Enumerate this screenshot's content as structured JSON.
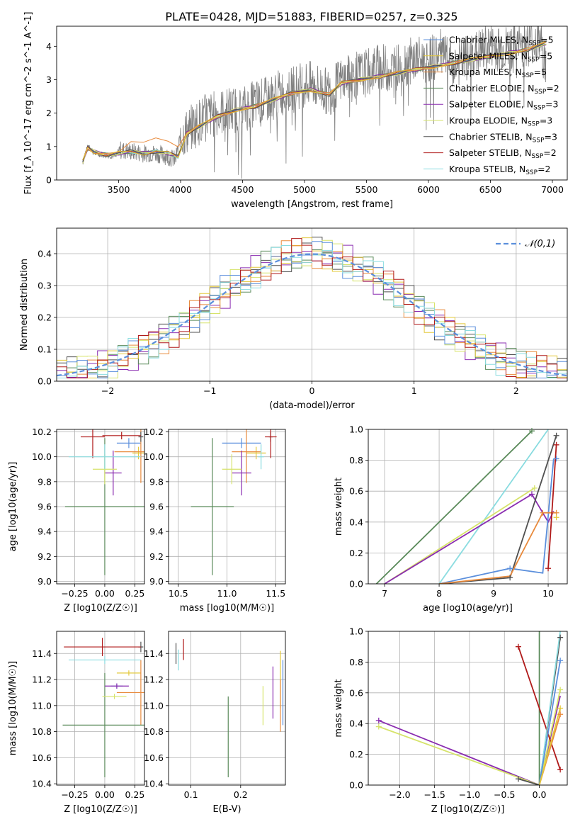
{
  "title": "PLATE=0428, MJD=51883, FIBERID=0257, z=0.325",
  "series": [
    {
      "name": "Chabrier MILES, N_SSP=5",
      "color": "#5b8fdc"
    },
    {
      "name": "Salpeter MILES, N_SSP=5",
      "color": "#e3c83a"
    },
    {
      "name": "Kroupa MILES, N_SSP=5",
      "color": "#e88a3c"
    },
    {
      "name": "Chabrier ELODIE, N_SSP=2",
      "color": "#5a8a5a"
    },
    {
      "name": "Salpeter ELODIE, N_SSP=3",
      "color": "#8a2cb0"
    },
    {
      "name": "Kroupa ELODIE, N_SSP=3",
      "color": "#d6e36a"
    },
    {
      "name": "Chabrier STELIB, N_SSP=3",
      "color": "#505050"
    },
    {
      "name": "Salpeter STELIB, N_SSP=2",
      "color": "#b01a1a"
    },
    {
      "name": "Kroupa STELIB, N_SSP=2",
      "color": "#8adce0"
    }
  ],
  "chart_data": [
    {
      "id": "spectrum",
      "type": "line",
      "xlabel": "wavelength [Angstrom, rest frame]",
      "ylabel": "Flux [f_λ 10^-17 erg cm^-2 s^-1 A^-1]",
      "xlim": [
        3000,
        7120
      ],
      "ylim": [
        0,
        4.6
      ],
      "xticks": [
        3500,
        4000,
        4500,
        5000,
        5500,
        6000,
        6500,
        7000
      ],
      "yticks": [
        0,
        1,
        2,
        3,
        4
      ],
      "legend": "upper right",
      "data_x": [
        3210,
        3230,
        3260,
        3300,
        3400,
        3480,
        3500,
        3600,
        3700,
        3800,
        3900,
        3960,
        4000,
        4100,
        4200,
        4300,
        4400,
        4500,
        4600,
        4700,
        4800,
        4900,
        5000,
        5100,
        5200,
        5300,
        5400,
        5500,
        5600,
        5700,
        5800,
        5900,
        6000,
        6100,
        6200,
        6300,
        6400,
        6500,
        6600,
        6700,
        6800,
        6900,
        6950
      ],
      "data_y": [
        0.5,
        0.8,
        1.05,
        0.8,
        0.75,
        0.7,
        0.9,
        0.85,
        0.8,
        0.8,
        0.7,
        0.6,
        1.3,
        1.6,
        1.9,
        2.0,
        2.1,
        2.1,
        2.3,
        2.4,
        2.6,
        2.7,
        2.9,
        2.8,
        2.6,
        3.0,
        3.1,
        3.2,
        3.4,
        3.3,
        3.5,
        3.6,
        3.6,
        3.8,
        3.4,
        3.6,
        3.8,
        4.0,
        3.9,
        4.0,
        4.1,
        4.2,
        3.3
      ],
      "model_x": [
        3210,
        3250,
        3300,
        3400,
        3500,
        3600,
        3700,
        3800,
        3900,
        3980,
        4050,
        4150,
        4300,
        4450,
        4600,
        4750,
        4900,
        5050,
        5200,
        5300,
        5450,
        5600,
        5750,
        5900,
        6050,
        6200,
        6350,
        6500,
        6650,
        6800,
        6950
      ],
      "model_y": [
        0.55,
        0.95,
        0.85,
        0.75,
        0.8,
        0.85,
        0.8,
        0.85,
        0.8,
        0.7,
        1.4,
        1.6,
        1.9,
        2.1,
        2.2,
        2.4,
        2.6,
        2.7,
        2.55,
        2.9,
        3.0,
        3.1,
        3.2,
        3.3,
        3.4,
        3.5,
        3.6,
        3.7,
        3.8,
        3.9,
        4.1
      ]
    },
    {
      "id": "residuals",
      "type": "step-histogram",
      "xlabel": "(data-model)/error",
      "ylabel": "Normed distribution",
      "xlim": [
        -2.5,
        2.5
      ],
      "ylim": [
        0,
        0.48
      ],
      "xticks": [
        -2,
        -1,
        0,
        1,
        2
      ],
      "yticks": [
        0.0,
        0.1,
        0.2,
        0.3,
        0.4
      ],
      "legend_label": "𝒩(0,1)",
      "legend": "upper right",
      "bin_width": 0.1,
      "hist_start": -2.5,
      "base_curve": "normal(0,1)"
    },
    {
      "id": "age_vs_Z",
      "type": "errorbar",
      "xlabel": "Z [log10(Z/Z☉)]",
      "ylabel": "age [log10(age/yr)]",
      "xlim": [
        -0.4,
        0.33
      ],
      "ylim": [
        8.98,
        10.22
      ],
      "xticks": [
        -0.25,
        0.0,
        0.25
      ],
      "yticks": [
        9.0,
        9.2,
        9.4,
        9.6,
        9.8,
        10.0,
        10.2
      ],
      "points": [
        {
          "s": 0,
          "x": 0.2,
          "y": 10.11,
          "xerr": 0.1,
          "yerr": 0.04
        },
        {
          "s": 1,
          "x": 0.28,
          "y": 10.03,
          "xerr": 0.05,
          "yerr": 0.05
        },
        {
          "s": 2,
          "x": 0.3,
          "y": 10.04,
          "xerr": 0.22,
          "yerr": 0.25
        },
        {
          "s": 3,
          "x": 0.0,
          "y": 9.6,
          "xerr": 0.33,
          "yerr": 0.55
        },
        {
          "s": 4,
          "x": 0.07,
          "y": 9.87,
          "xerr": 0.07,
          "yerr": 0.18
        },
        {
          "s": 5,
          "x": 0.0,
          "y": 9.9,
          "xerr": 0.1,
          "yerr": 0.12
        },
        {
          "s": 6,
          "x": 0.3,
          "y": 10.16,
          "xerr": 0.02,
          "yerr": 0.04
        },
        {
          "s": 7,
          "x": -0.1,
          "y": 10.16,
          "xerr": 0.1,
          "yerr": 0.17
        },
        {
          "s": 7,
          "x": 0.14,
          "y": 10.17,
          "xerr": 0.16,
          "yerr": 0.03
        },
        {
          "s": 8,
          "x": 0.0,
          "y": 10.0,
          "xerr": 0.3,
          "yerr": 0.1
        }
      ]
    },
    {
      "id": "age_vs_mass",
      "type": "errorbar",
      "xlabel": "mass [log10(M/M☉)]",
      "xlim": [
        10.4,
        11.6
      ],
      "ylim": [
        8.98,
        10.22
      ],
      "xticks": [
        10.5,
        11.0,
        11.5
      ],
      "yticks": [
        9.0,
        9.2,
        9.4,
        9.6,
        9.8,
        10.0,
        10.2
      ],
      "points": [
        {
          "s": 0,
          "x": 11.15,
          "y": 10.11,
          "xerr": 0.2,
          "yerr": 0.04
        },
        {
          "s": 1,
          "x": 11.3,
          "y": 10.03,
          "xerr": 0.1,
          "yerr": 0.05
        },
        {
          "s": 2,
          "x": 11.2,
          "y": 10.04,
          "xerr": 0.15,
          "yerr": 0.25
        },
        {
          "s": 3,
          "x": 10.85,
          "y": 9.6,
          "xerr": 0.22,
          "yerr": 0.55
        },
        {
          "s": 4,
          "x": 11.15,
          "y": 9.87,
          "xerr": 0.1,
          "yerr": 0.18
        },
        {
          "s": 5,
          "x": 11.05,
          "y": 9.9,
          "xerr": 0.1,
          "yerr": 0.12
        },
        {
          "s": 6,
          "x": 11.45,
          "y": 10.16,
          "xerr": 0.02,
          "yerr": 0.04
        },
        {
          "s": 7,
          "x": 11.45,
          "y": 10.16,
          "xerr": 0.06,
          "yerr": 0.17
        },
        {
          "s": 8,
          "x": 11.35,
          "y": 10.0,
          "xerr": 0.03,
          "yerr": 0.1
        }
      ]
    },
    {
      "id": "weight_vs_age",
      "type": "line",
      "xlabel": "age [log10(age/yr)]",
      "ylabel": "mass weight",
      "xlim": [
        6.7,
        10.35
      ],
      "ylim": [
        0,
        1.0
      ],
      "xticks": [
        7,
        8,
        9,
        10
      ],
      "yticks": [
        0.0,
        0.2,
        0.4,
        0.6,
        0.8,
        1.0
      ],
      "lines": [
        {
          "s": 3,
          "x": [
            6.85,
            9.7
          ],
          "y": [
            0.0,
            0.99
          ]
        },
        {
          "s": 8,
          "x": [
            8.0,
            10.0
          ],
          "y": [
            0.0,
            1.0
          ]
        },
        {
          "s": 5,
          "x": [
            7.0,
            9.75
          ],
          "y": [
            0.0,
            0.62
          ]
        },
        {
          "s": 4,
          "x": [
            7.0,
            9.7,
            10.0,
            10.1
          ],
          "y": [
            0.0,
            0.58,
            0.4,
            0.47
          ]
        },
        {
          "s": 6,
          "x": [
            8.0,
            9.3,
            10.15
          ],
          "y": [
            0.0,
            0.04,
            0.96
          ]
        },
        {
          "s": 0,
          "x": [
            8.0,
            9.3,
            9.9,
            10.1
          ],
          "y": [
            0.0,
            0.1,
            0.07,
            0.81
          ]
        },
        {
          "s": 2,
          "x": [
            8.0,
            9.3,
            9.9,
            10.15
          ],
          "y": [
            0.0,
            0.05,
            0.46,
            0.46
          ]
        },
        {
          "s": 7,
          "x": [
            10.0,
            10.15
          ],
          "y": [
            0.1,
            0.9
          ]
        }
      ],
      "markers": [
        {
          "s": 3,
          "x": 9.7,
          "y": 0.99
        },
        {
          "s": 6,
          "x": 10.15,
          "y": 0.96
        },
        {
          "s": 7,
          "x": 10.15,
          "y": 0.9
        },
        {
          "s": 0,
          "x": 10.15,
          "y": 0.81
        },
        {
          "s": 5,
          "x": 9.75,
          "y": 0.62
        },
        {
          "s": 4,
          "x": 9.7,
          "y": 0.58
        },
        {
          "s": 2,
          "x": 9.9,
          "y": 0.46
        },
        {
          "s": 2,
          "x": 10.15,
          "y": 0.46
        },
        {
          "s": 1,
          "x": 10.15,
          "y": 0.43
        },
        {
          "s": 7,
          "x": 10.0,
          "y": 0.1
        },
        {
          "s": 0,
          "x": 9.3,
          "y": 0.1
        },
        {
          "s": 6,
          "x": 9.3,
          "y": 0.04
        }
      ]
    },
    {
      "id": "mass_vs_Z",
      "type": "errorbar",
      "xlabel": "Z [log10(Z/Z☉)]",
      "ylabel": "mass [log10(M/M☉)]",
      "xlim": [
        -0.4,
        0.33
      ],
      "ylim": [
        10.39,
        11.57
      ],
      "xticks": [
        -0.25,
        0.0,
        0.25
      ],
      "yticks": [
        10.4,
        10.6,
        10.8,
        11.0,
        11.2,
        11.4
      ],
      "points": [
        {
          "s": 0,
          "x": 0.1,
          "y": 11.15,
          "xerr": 0.05,
          "yerr": 0.02
        },
        {
          "s": 1,
          "x": 0.2,
          "y": 11.25,
          "xerr": 0.1,
          "yerr": 0.02
        },
        {
          "s": 2,
          "x": 0.3,
          "y": 11.1,
          "xerr": 0.2,
          "yerr": 0.25
        },
        {
          "s": 3,
          "x": 0.0,
          "y": 10.85,
          "xerr": 0.35,
          "yerr": 0.4
        },
        {
          "s": 4,
          "x": 0.1,
          "y": 11.15,
          "xerr": 0.1,
          "yerr": 0.02
        },
        {
          "s": 5,
          "x": 0.08,
          "y": 11.07,
          "xerr": 0.1,
          "yerr": 0.02
        },
        {
          "s": 6,
          "x": 0.3,
          "y": 11.45,
          "xerr": 0.02,
          "yerr": 0.04
        },
        {
          "s": 7,
          "x": -0.02,
          "y": 11.45,
          "xerr": 0.32,
          "yerr": 0.07
        },
        {
          "s": 8,
          "x": 0.0,
          "y": 11.35,
          "xerr": 0.3,
          "yerr": 0.03
        }
      ]
    },
    {
      "id": "mass_vs_EBV",
      "type": "errorbar",
      "xlabel": "E(B-V)",
      "xlim": [
        0.055,
        0.29
      ],
      "ylim": [
        10.39,
        11.57
      ],
      "xticks": [
        0.1,
        0.2
      ],
      "yticks": [
        10.4,
        10.6,
        10.8,
        11.0,
        11.2,
        11.4
      ],
      "points": [
        {
          "s": 0,
          "x": 0.285,
          "y": 11.1,
          "xerr": 0,
          "yerr": 0.25
        },
        {
          "s": 1,
          "x": 0.28,
          "y": 11.2,
          "xerr": 0,
          "yerr": 0.22
        },
        {
          "s": 2,
          "x": 0.28,
          "y": 11.0,
          "xerr": 0,
          "yerr": 0.2
        },
        {
          "s": 3,
          "x": 0.175,
          "y": 10.76,
          "xerr": 0,
          "yerr": 0.31
        },
        {
          "s": 4,
          "x": 0.265,
          "y": 11.1,
          "xerr": 0,
          "yerr": 0.2
        },
        {
          "s": 5,
          "x": 0.245,
          "y": 11.0,
          "xerr": 0,
          "yerr": 0.15
        },
        {
          "s": 6,
          "x": 0.07,
          "y": 11.4,
          "xerr": 0,
          "yerr": 0.08
        },
        {
          "s": 7,
          "x": 0.085,
          "y": 11.43,
          "xerr": 0,
          "yerr": 0.08
        },
        {
          "s": 8,
          "x": 0.075,
          "y": 11.35,
          "xerr": 0,
          "yerr": 0.08
        }
      ]
    },
    {
      "id": "weight_vs_Z",
      "type": "line",
      "xlabel": "Z [log10(Z/Z☉)]",
      "ylabel": "mass weight",
      "xlim": [
        -2.45,
        0.4
      ],
      "ylim": [
        0,
        1.0
      ],
      "xticks": [
        -2.0,
        -1.5,
        -1.0,
        -0.5,
        0.0
      ],
      "yticks": [
        0.0,
        0.2,
        0.4,
        0.6,
        0.8,
        1.0
      ],
      "lines": [
        {
          "s": 3,
          "x": [
            0.0,
            0.0
          ],
          "y": [
            0.0,
            1.0
          ]
        },
        {
          "s": 4,
          "x": [
            -2.3,
            0.0,
            0.3
          ],
          "y": [
            0.42,
            0.0,
            0.58
          ]
        },
        {
          "s": 5,
          "x": [
            -2.3,
            0.0,
            0.3
          ],
          "y": [
            0.38,
            0.0,
            0.62
          ]
        },
        {
          "s": 6,
          "x": [
            -0.3,
            0.0,
            0.3
          ],
          "y": [
            0.04,
            0.0,
            0.96
          ]
        },
        {
          "s": 7,
          "x": [
            -0.3,
            0.3
          ],
          "y": [
            0.9,
            0.1
          ]
        },
        {
          "s": 8,
          "x": [
            0.0,
            0.3
          ],
          "y": [
            0.0,
            1.0
          ]
        },
        {
          "s": 0,
          "x": [
            0.0,
            0.3
          ],
          "y": [
            0.0,
            0.81
          ]
        },
        {
          "s": 2,
          "x": [
            0.0,
            0.3
          ],
          "y": [
            0.0,
            0.46
          ]
        },
        {
          "s": 1,
          "x": [
            0.0,
            0.3
          ],
          "y": [
            0.0,
            0.5
          ]
        }
      ],
      "markers": [
        {
          "s": 4,
          "x": -2.3,
          "y": 0.42
        },
        {
          "s": 5,
          "x": -2.3,
          "y": 0.38
        },
        {
          "s": 7,
          "x": -0.3,
          "y": 0.9
        },
        {
          "s": 6,
          "x": -0.3,
          "y": 0.04
        },
        {
          "s": 6,
          "x": 0.3,
          "y": 0.96
        },
        {
          "s": 0,
          "x": 0.3,
          "y": 0.81
        },
        {
          "s": 5,
          "x": 0.3,
          "y": 0.62
        },
        {
          "s": 1,
          "x": 0.3,
          "y": 0.5
        },
        {
          "s": 2,
          "x": 0.3,
          "y": 0.46
        },
        {
          "s": 7,
          "x": 0.3,
          "y": 0.1
        }
      ]
    }
  ]
}
